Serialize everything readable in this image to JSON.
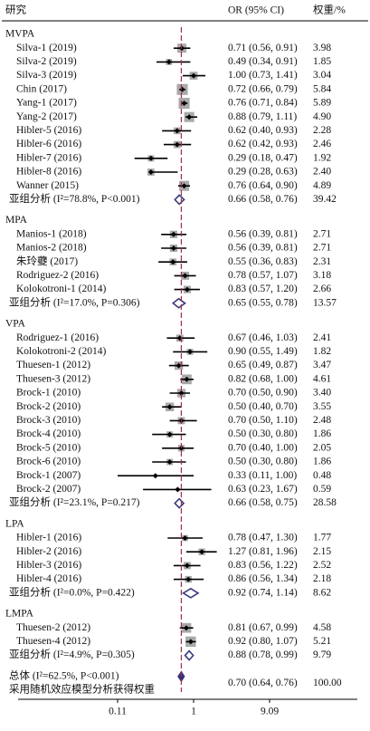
{
  "chart_data": {
    "type": "forest",
    "header": {
      "study": "研究",
      "estimate": "OR (95% CI)",
      "weight": "权重/%"
    },
    "xscale": "log",
    "xlim": [
      0.11,
      9.09
    ],
    "xticks": [
      0.11,
      1,
      9.09
    ],
    "groups": [
      {
        "name": "MVPA",
        "studies": [
          {
            "name": "Silva-1 (2019)",
            "or": 0.71,
            "lo": 0.56,
            "hi": 0.91,
            "ci_label": "0.71 (0.56, 0.91)",
            "weight": 3.98,
            "weight_label": "3.98"
          },
          {
            "name": "Silva-2 (2019)",
            "or": 0.49,
            "lo": 0.34,
            "hi": 0.91,
            "ci_label": "0.49 (0.34, 0.91)",
            "weight": 1.85,
            "weight_label": "1.85"
          },
          {
            "name": "Silva-3 (2019)",
            "or": 1.0,
            "lo": 0.73,
            "hi": 1.41,
            "ci_label": "1.00 (0.73, 1.41)",
            "weight": 3.04,
            "weight_label": "3.04"
          },
          {
            "name": "Chin (2017)",
            "or": 0.72,
            "lo": 0.66,
            "hi": 0.79,
            "ci_label": "0.72 (0.66, 0.79)",
            "weight": 5.84,
            "weight_label": "5.84"
          },
          {
            "name": "Yang-1 (2017)",
            "or": 0.76,
            "lo": 0.71,
            "hi": 0.84,
            "ci_label": "0.76 (0.71, 0.84)",
            "weight": 5.89,
            "weight_label": "5.89"
          },
          {
            "name": "Yang-2 (2017)",
            "or": 0.88,
            "lo": 0.79,
            "hi": 1.11,
            "ci_label": "0.88 (0.79, 1.11)",
            "weight": 4.9,
            "weight_label": "4.90"
          },
          {
            "name": "Hibler-5 (2016)",
            "or": 0.62,
            "lo": 0.4,
            "hi": 0.93,
            "ci_label": "0.62 (0.40, 0.93)",
            "weight": 2.28,
            "weight_label": "2.28"
          },
          {
            "name": "Hibler-6 (2016)",
            "or": 0.62,
            "lo": 0.42,
            "hi": 0.93,
            "ci_label": "0.62 (0.42, 0.93)",
            "weight": 2.46,
            "weight_label": "2.46"
          },
          {
            "name": "Hibler-7 (2016)",
            "or": 0.29,
            "lo": 0.18,
            "hi": 0.47,
            "ci_label": "0.29 (0.18, 0.47)",
            "weight": 1.92,
            "weight_label": "1.92"
          },
          {
            "name": "Hibler-8 (2016)",
            "or": 0.29,
            "lo": 0.28,
            "hi": 0.63,
            "ci_label": "0.29 (0.28, 0.63)",
            "weight": 2.4,
            "weight_label": "2.40"
          },
          {
            "name": "Wanner (2015)",
            "or": 0.76,
            "lo": 0.64,
            "hi": 0.9,
            "ci_label": "0.76 (0.64, 0.90)",
            "weight": 4.89,
            "weight_label": "4.89"
          }
        ],
        "subtotal": {
          "name": "亚组分析 (I²=78.8%, P<0.001)",
          "or": 0.66,
          "lo": 0.58,
          "hi": 0.76,
          "ci_label": "0.66 (0.58, 0.76)",
          "weight": 39.42,
          "weight_label": "39.42"
        }
      },
      {
        "name": "MPA",
        "studies": [
          {
            "name": "Manios-1 (2018)",
            "or": 0.56,
            "lo": 0.39,
            "hi": 0.81,
            "ci_label": "0.56 (0.39, 0.81)",
            "weight": 2.71,
            "weight_label": "2.71"
          },
          {
            "name": "Manios-2 (2018)",
            "or": 0.56,
            "lo": 0.39,
            "hi": 0.81,
            "ci_label": "0.56 (0.39, 0.81)",
            "weight": 2.71,
            "weight_label": "2.71"
          },
          {
            "name": "朱玲虁 (2017)",
            "or": 0.55,
            "lo": 0.36,
            "hi": 0.83,
            "ci_label": "0.55 (0.36, 0.83)",
            "weight": 2.31,
            "weight_label": "2.31"
          },
          {
            "name": "Rodriguez-2 (2016)",
            "or": 0.78,
            "lo": 0.57,
            "hi": 1.07,
            "ci_label": "0.78 (0.57, 1.07)",
            "weight": 3.18,
            "weight_label": "3.18"
          },
          {
            "name": "Kolokotroni-1 (2014)",
            "or": 0.83,
            "lo": 0.57,
            "hi": 1.2,
            "ci_label": "0.83 (0.57, 1.20)",
            "weight": 2.66,
            "weight_label": "2.66"
          }
        ],
        "subtotal": {
          "name": "亚组分析 (I²=17.0%, P=0.306)",
          "or": 0.65,
          "lo": 0.55,
          "hi": 0.78,
          "ci_label": "0.65 (0.55, 0.78)",
          "weight": 13.57,
          "weight_label": "13.57"
        }
      },
      {
        "name": "VPA",
        "studies": [
          {
            "name": "Rodriguez-1 (2016)",
            "or": 0.67,
            "lo": 0.46,
            "hi": 1.03,
            "ci_label": "0.67 (0.46, 1.03)",
            "weight": 2.41,
            "weight_label": "2.41"
          },
          {
            "name": "Kolokotroni-2 (2014)",
            "or": 0.9,
            "lo": 0.55,
            "hi": 1.49,
            "ci_label": "0.90 (0.55, 1.49)",
            "weight": 1.82,
            "weight_label": "1.82"
          },
          {
            "name": "Thuesen-1 (2012)",
            "or": 0.65,
            "lo": 0.49,
            "hi": 0.87,
            "ci_label": "0.65 (0.49, 0.87)",
            "weight": 3.47,
            "weight_label": "3.47"
          },
          {
            "name": "Thuesen-3 (2012)",
            "or": 0.82,
            "lo": 0.68,
            "hi": 1.0,
            "ci_label": "0.82 (0.68, 1.00)",
            "weight": 4.61,
            "weight_label": "4.61"
          },
          {
            "name": "Brock-1 (2010)",
            "or": 0.7,
            "lo": 0.5,
            "hi": 0.9,
            "ci_label": "0.70 (0.50, 0.90)",
            "weight": 3.4,
            "weight_label": "3.40"
          },
          {
            "name": "Brock-2 (2010)",
            "or": 0.5,
            "lo": 0.4,
            "hi": 0.7,
            "ci_label": "0.50 (0.40, 0.70)",
            "weight": 3.55,
            "weight_label": "3.55"
          },
          {
            "name": "Brock-3 (2010)",
            "or": 0.7,
            "lo": 0.5,
            "hi": 1.1,
            "ci_label": "0.70 (0.50, 1.10)",
            "weight": 2.48,
            "weight_label": "2.48"
          },
          {
            "name": "Brock-4 (2010)",
            "or": 0.5,
            "lo": 0.3,
            "hi": 0.8,
            "ci_label": "0.50 (0.30, 0.80)",
            "weight": 1.86,
            "weight_label": "1.86"
          },
          {
            "name": "Brock-5 (2010)",
            "or": 0.7,
            "lo": 0.4,
            "hi": 1.0,
            "ci_label": "0.70 (0.40, 1.00)",
            "weight": 2.05,
            "weight_label": "2.05"
          },
          {
            "name": "Brock-6 (2010)",
            "or": 0.5,
            "lo": 0.3,
            "hi": 0.8,
            "ci_label": "0.50 (0.30, 0.80)",
            "weight": 1.86,
            "weight_label": "1.86"
          },
          {
            "name": "Brock-1 (2007)",
            "or": 0.33,
            "lo": 0.11,
            "hi": 1.0,
            "ci_label": "0.33 (0.11, 1.00)",
            "weight": 0.48,
            "weight_label": "0.48"
          },
          {
            "name": "Brock-2 (2007)",
            "or": 0.63,
            "lo": 0.23,
            "hi": 1.67,
            "ci_label": "0.63 (0.23, 1.67)",
            "weight": 0.59,
            "weight_label": "0.59"
          }
        ],
        "subtotal": {
          "name": "亚组分析 (I²=23.1%, P=0.217)",
          "or": 0.66,
          "lo": 0.58,
          "hi": 0.75,
          "ci_label": "0.66 (0.58, 0.75)",
          "weight": 28.58,
          "weight_label": "28.58"
        }
      },
      {
        "name": "LPA",
        "studies": [
          {
            "name": "Hibler-1 (2016)",
            "or": 0.78,
            "lo": 0.47,
            "hi": 1.3,
            "ci_label": "0.78 (0.47, 1.30)",
            "weight": 1.77,
            "weight_label": "1.77"
          },
          {
            "name": "Hibler-2 (2016)",
            "or": 1.27,
            "lo": 0.81,
            "hi": 1.96,
            "ci_label": "1.27 (0.81, 1.96)",
            "weight": 2.15,
            "weight_label": "2.15"
          },
          {
            "name": "Hibler-3 (2016)",
            "or": 0.83,
            "lo": 0.56,
            "hi": 1.22,
            "ci_label": "0.83 (0.56, 1.22)",
            "weight": 2.52,
            "weight_label": "2.52"
          },
          {
            "name": "Hibler-4 (2016)",
            "or": 0.86,
            "lo": 0.56,
            "hi": 1.34,
            "ci_label": "0.86 (0.56, 1.34)",
            "weight": 2.18,
            "weight_label": "2.18"
          }
        ],
        "subtotal": {
          "name": "亚组分析 (I²=0.0%, P=0.422)",
          "or": 0.92,
          "lo": 0.74,
          "hi": 1.14,
          "ci_label": "0.92 (0.74, 1.14)",
          "weight": 8.62,
          "weight_label": "8.62"
        }
      },
      {
        "name": "LMPA",
        "studies": [
          {
            "name": "Thuesen-2 (2012)",
            "or": 0.81,
            "lo": 0.67,
            "hi": 0.99,
            "ci_label": "0.81 (0.67, 0.99)",
            "weight": 4.58,
            "weight_label": "4.58"
          },
          {
            "name": "Thuesen-4 (2012)",
            "or": 0.92,
            "lo": 0.8,
            "hi": 1.07,
            "ci_label": "0.92 (0.80, 1.07)",
            "weight": 5.21,
            "weight_label": "5.21"
          }
        ],
        "subtotal": {
          "name": "亚组分析 (I²=4.9%, P=0.305)",
          "or": 0.88,
          "lo": 0.78,
          "hi": 0.99,
          "ci_label": "0.88 (0.78, 0.99)",
          "weight": 9.79,
          "weight_label": "9.79"
        }
      }
    ],
    "overall": {
      "name": "总体 (I²=62.5%, P<0.001)",
      "note": "采用随机效应模型分析获得权重",
      "or": 0.7,
      "lo": 0.64,
      "hi": 0.76,
      "ci_label": "0.70 (0.64, 0.76)",
      "weight": 100.0,
      "weight_label": "100.00"
    }
  }
}
